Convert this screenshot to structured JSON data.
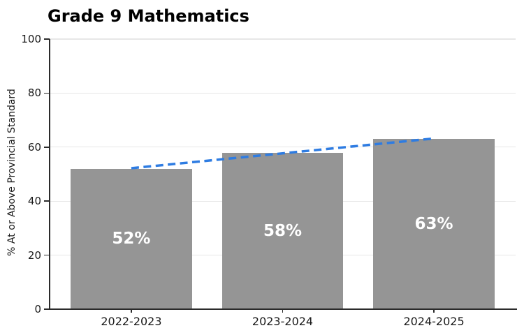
{
  "figure": {
    "background": "#ffffff"
  },
  "chart_data": {
    "type": "bar",
    "title": "Grade 9 Mathematics",
    "xlabel": "",
    "ylabel": "% At or Above Provincial Standard",
    "categories": [
      "2022-2023",
      "2023-2024",
      "2024-2025"
    ],
    "values": [
      52,
      58,
      63
    ],
    "bar_labels": [
      "52%",
      "58%",
      "63%"
    ],
    "ylim": [
      0,
      100
    ],
    "yticks": [
      0,
      20,
      40,
      60,
      80,
      100
    ],
    "grid": "horizontal",
    "legend": "none",
    "bar_color": "#959595",
    "bar_label_color": "#ffffff",
    "grid_color": "#e7e7e7",
    "axis_color": "#2b2b2b",
    "trend_line": {
      "type": "linear",
      "style": "dashed",
      "color": "#2e7ce2",
      "start_value": 52.2,
      "end_value": 63.2
    }
  }
}
